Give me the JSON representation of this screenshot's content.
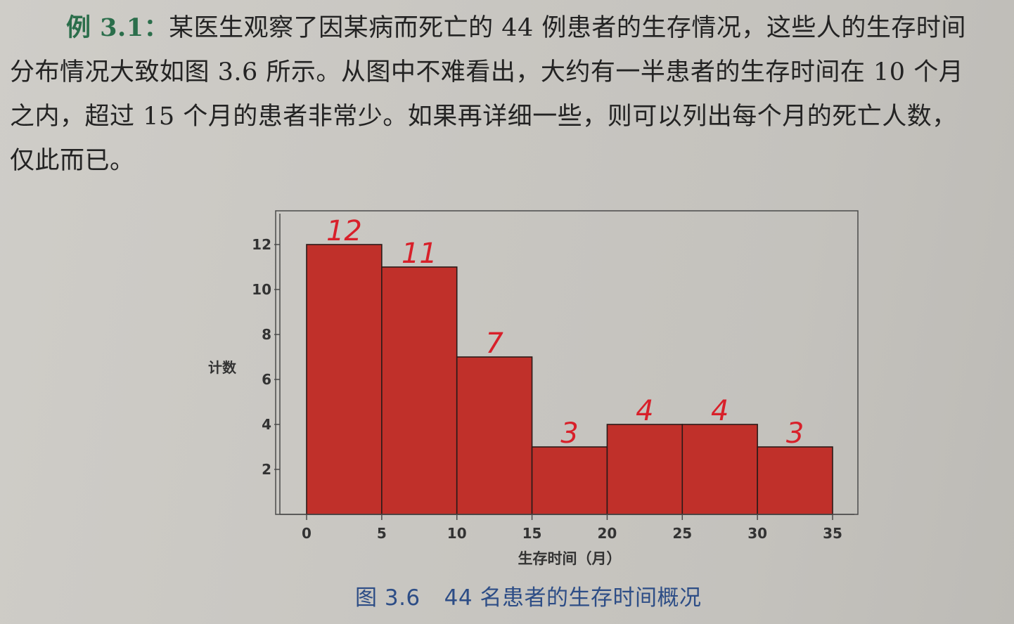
{
  "paragraph": {
    "label": "例 3.1：",
    "line1": "某医生观察了因某病而死亡的 44 例患者的生存情况，这些人的生存时间",
    "line2": "分布情况大致如图 3.6 所示。从图中不难看出，大约有一半患者的生存时间在 10 个月",
    "line3": "之内，超过 15 个月的患者非常少。如果再详细一些，则可以列出每个月的死亡人数，",
    "line4": "仅此而已。"
  },
  "chart_data": {
    "type": "bar",
    "bins": [
      [
        0,
        5
      ],
      [
        5,
        10
      ],
      [
        10,
        15
      ],
      [
        15,
        20
      ],
      [
        20,
        25
      ],
      [
        25,
        30
      ],
      [
        30,
        35
      ]
    ],
    "values": [
      12,
      11,
      7,
      3,
      4,
      4,
      3
    ],
    "handwritten_labels": [
      "12",
      "11",
      "7",
      "3",
      "4",
      "4",
      "3"
    ],
    "xlabel": "生存时间（月）",
    "ylabel": "计数",
    "x_ticks": [
      "0",
      "5",
      "10",
      "15",
      "20",
      "25",
      "30",
      "35"
    ],
    "y_ticks": [
      "2",
      "4",
      "6",
      "8",
      "10",
      "12"
    ],
    "xlim": [
      0,
      35
    ],
    "ylim": [
      0,
      13.5
    ],
    "bar_color": "#c0302a",
    "annotation_color": "#d8202a",
    "grid": false
  },
  "caption": {
    "figure_number": "图 3.6",
    "text": "44 名患者的生存时间概况"
  }
}
